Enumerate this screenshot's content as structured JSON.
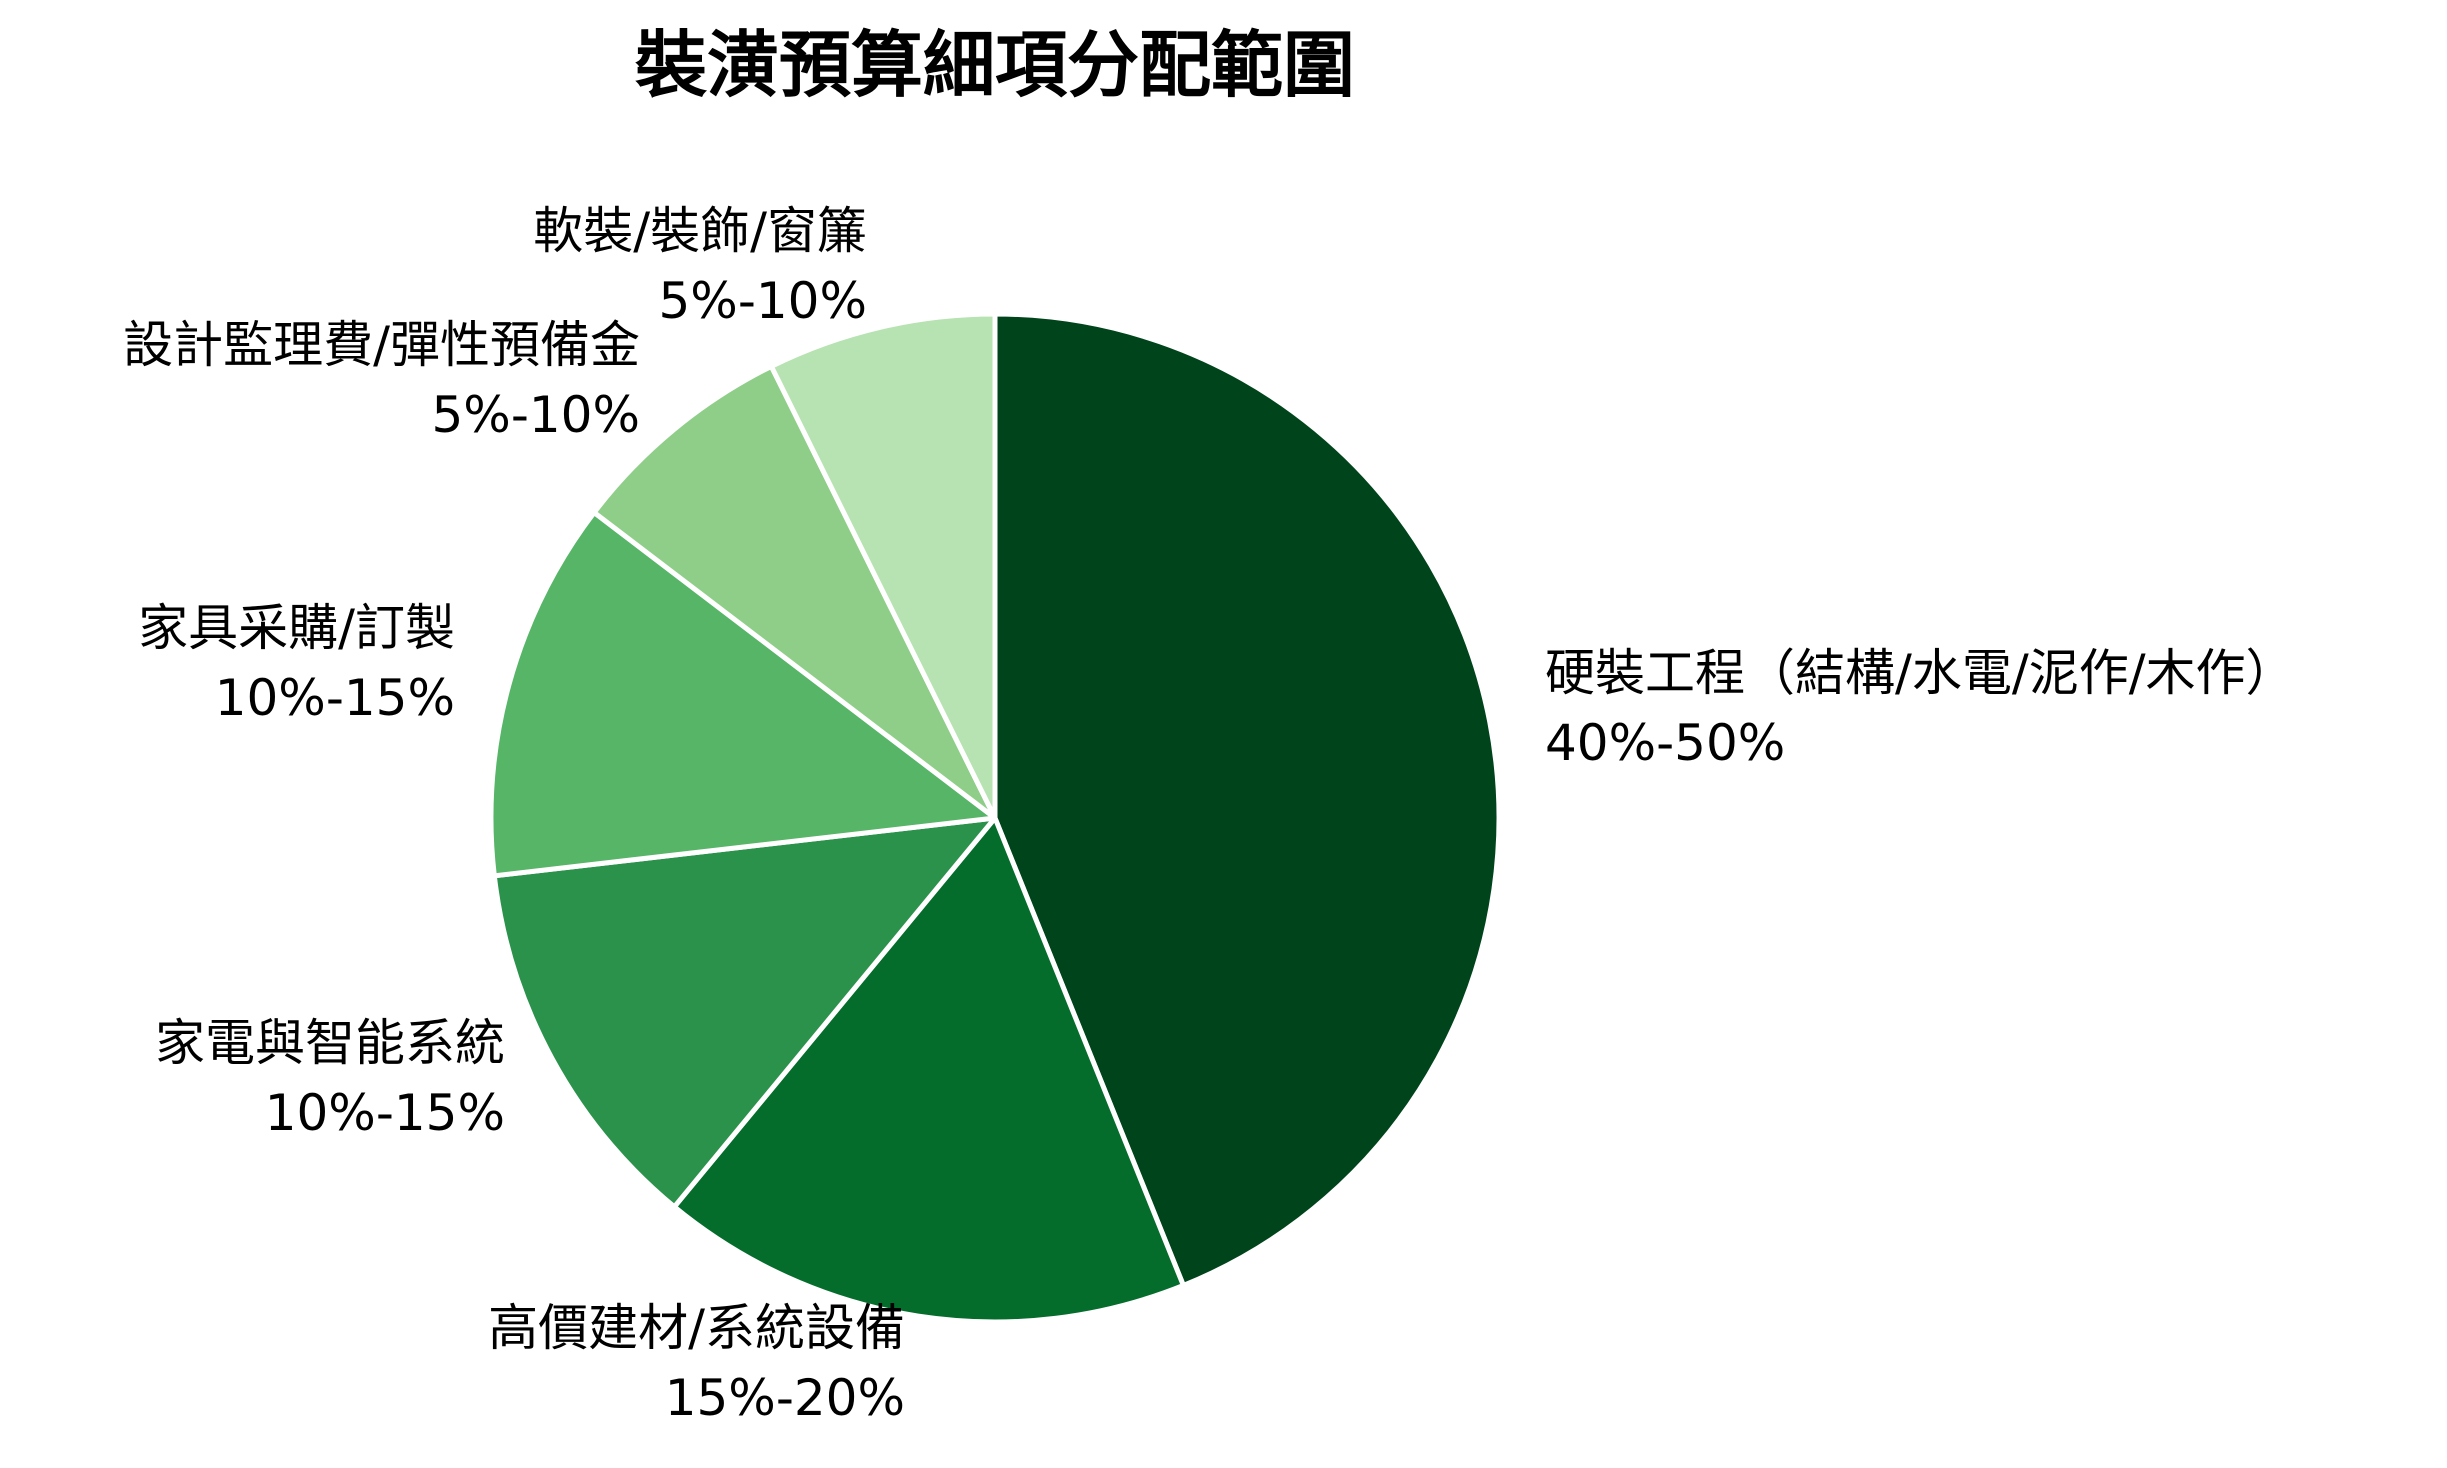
{
  "chart_data": {
    "type": "pie",
    "title": "裝潢預算細項分配範圍",
    "slices": [
      {
        "label": "硬裝工程（結構/水電/泥作/木作）",
        "range": "40%-50%",
        "value": 45,
        "color": "#00441b"
      },
      {
        "label": "高價建材/系統設備",
        "range": "15%-20%",
        "value": 17.5,
        "color": "#056d2c"
      },
      {
        "label": "家電與智能系統",
        "range": "10%-15%",
        "value": 12.5,
        "color": "#2a924a"
      },
      {
        "label": "家具采購/訂製",
        "range": "10%-15%",
        "value": 12.5,
        "color": "#56b567"
      },
      {
        "label": "設計監理費/彈性預備金",
        "range": "5%-10%",
        "value": 7.5,
        "color": "#8ece88"
      },
      {
        "label": "軟裝/裝飾/窗簾",
        "range": "5%-10%",
        "value": 7.5,
        "color": "#b7e2b1"
      }
    ],
    "start_angle": "12 o'clock",
    "direction": "clockwise",
    "edge_color": "#ffffff"
  }
}
